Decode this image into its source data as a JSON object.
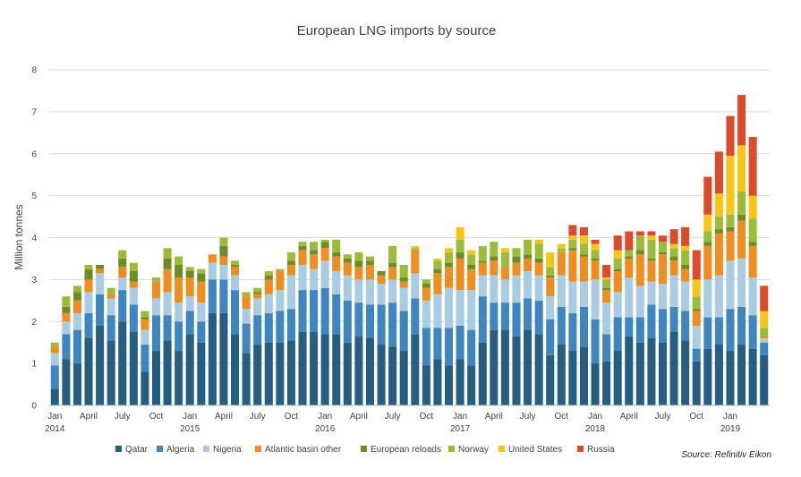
{
  "chart_data": {
    "type": "bar",
    "stacked": true,
    "title": "European LNG imports by source",
    "ylabel": "Million tonnes",
    "xlabel": "",
    "ylim": [
      0,
      8
    ],
    "yticks": [
      0,
      1,
      2,
      3,
      4,
      5,
      6,
      7,
      8
    ],
    "grid": "horizontal",
    "legend_position": "bottom",
    "source": "Source: Refinitiv Eikon",
    "x_ticks": [
      {
        "index": 0,
        "label": "Jan",
        "year": "2014"
      },
      {
        "index": 3,
        "label": "April",
        "year": ""
      },
      {
        "index": 6,
        "label": "July",
        "year": ""
      },
      {
        "index": 9,
        "label": "Oct",
        "year": ""
      },
      {
        "index": 12,
        "label": "Jan",
        "year": "2015"
      },
      {
        "index": 15,
        "label": "April",
        "year": ""
      },
      {
        "index": 18,
        "label": "July",
        "year": ""
      },
      {
        "index": 21,
        "label": "Oct",
        "year": ""
      },
      {
        "index": 24,
        "label": "Jan",
        "year": "2016"
      },
      {
        "index": 27,
        "label": "April",
        "year": ""
      },
      {
        "index": 30,
        "label": "July",
        "year": ""
      },
      {
        "index": 33,
        "label": "Oct",
        "year": ""
      },
      {
        "index": 36,
        "label": "Jan",
        "year": "2017"
      },
      {
        "index": 39,
        "label": "April",
        "year": ""
      },
      {
        "index": 42,
        "label": "July",
        "year": ""
      },
      {
        "index": 45,
        "label": "Oct",
        "year": ""
      },
      {
        "index": 48,
        "label": "Jan",
        "year": "2018"
      },
      {
        "index": 51,
        "label": "April",
        "year": ""
      },
      {
        "index": 54,
        "label": "July",
        "year": ""
      },
      {
        "index": 57,
        "label": "Oct",
        "year": ""
      },
      {
        "index": 60,
        "label": "Jan",
        "year": "2019"
      }
    ],
    "series": [
      {
        "name": "Qatar",
        "color": "#255e80",
        "values": [
          0.4,
          1.1,
          1.0,
          1.6,
          1.9,
          1.55,
          2.0,
          1.75,
          0.8,
          1.3,
          1.55,
          1.3,
          1.7,
          1.5,
          2.2,
          2.2,
          1.7,
          1.25,
          1.45,
          1.5,
          1.5,
          1.55,
          1.75,
          1.75,
          1.7,
          1.7,
          1.5,
          1.65,
          1.6,
          1.45,
          1.4,
          1.3,
          1.7,
          0.95,
          1.1,
          0.95,
          1.1,
          0.95,
          1.5,
          1.8,
          1.8,
          1.65,
          1.8,
          1.7,
          1.2,
          1.45,
          1.3,
          1.4,
          1.0,
          1.05,
          1.3,
          1.65,
          1.5,
          1.6,
          1.5,
          1.75,
          1.55,
          1.05,
          1.35,
          1.45,
          1.3,
          1.45,
          1.35,
          1.2
        ]
      },
      {
        "name": "Algeria",
        "color": "#3f86c1",
        "values": [
          0.55,
          0.6,
          0.8,
          0.6,
          0.75,
          0.6,
          0.75,
          0.65,
          0.65,
          0.85,
          0.6,
          0.7,
          0.55,
          0.5,
          0.8,
          0.8,
          1.05,
          0.7,
          0.7,
          0.7,
          0.75,
          0.75,
          1.0,
          1.0,
          1.1,
          0.95,
          1.0,
          0.8,
          0.8,
          0.95,
          1.05,
          0.95,
          0.85,
          0.9,
          0.75,
          0.9,
          0.8,
          0.85,
          1.1,
          0.65,
          0.65,
          0.8,
          0.75,
          0.8,
          0.85,
          0.9,
          0.9,
          0.95,
          1.05,
          0.65,
          0.8,
          0.45,
          0.6,
          0.8,
          0.8,
          0.6,
          0.7,
          0.3,
          0.75,
          0.65,
          1.0,
          0.9,
          0.8,
          0.3
        ]
      },
      {
        "name": "Nigeria",
        "color": "#a9cce3",
        "values": [
          0.3,
          0.3,
          0.4,
          0.5,
          0.5,
          0.4,
          0.3,
          0.4,
          0.35,
          0.4,
          0.55,
          0.45,
          0.35,
          0.45,
          0.4,
          0.35,
          0.35,
          0.35,
          0.4,
          0.45,
          0.5,
          0.8,
          0.6,
          0.5,
          0.65,
          0.55,
          0.6,
          0.55,
          0.6,
          0.5,
          0.55,
          0.55,
          0.6,
          0.65,
          0.8,
          0.95,
          0.85,
          0.95,
          0.5,
          0.65,
          0.55,
          0.65,
          0.65,
          0.6,
          0.55,
          0.75,
          0.75,
          0.6,
          0.95,
          0.75,
          0.6,
          0.95,
          0.75,
          0.55,
          0.6,
          0.75,
          0.7,
          0.55,
          0.9,
          1.0,
          1.15,
          1.15,
          0.9,
          0.1
        ]
      },
      {
        "name": "Atlantic basin other",
        "color": "#ee8e22",
        "values": [
          0.15,
          0.2,
          0.3,
          0.3,
          0.1,
          0.1,
          0.25,
          0.15,
          0.25,
          0.4,
          0.55,
          0.6,
          0.45,
          0.5,
          0.2,
          0.2,
          0.2,
          0.3,
          0.1,
          0.35,
          0.45,
          0.25,
          0.35,
          0.35,
          0.3,
          0.35,
          0.3,
          0.3,
          0.35,
          0.2,
          0.3,
          0.15,
          0.55,
          0.3,
          0.5,
          0.5,
          0.75,
          0.5,
          0.3,
          0.35,
          0.3,
          0.3,
          0.3,
          0.3,
          0.45,
          0.55,
          0.75,
          0.6,
          0.45,
          0.3,
          0.5,
          0.45,
          0.75,
          0.5,
          0.7,
          0.35,
          0.3,
          0.35,
          0.8,
          1.0,
          0.7,
          0.9,
          0.75,
          0.05
        ]
      },
      {
        "name": "European reloads",
        "color": "#6d8c26",
        "values": [
          0.0,
          0.15,
          0.2,
          0.25,
          0.1,
          0.0,
          0.2,
          0.25,
          0.05,
          0.0,
          0.25,
          0.3,
          0.15,
          0.2,
          0.0,
          0.25,
          0.05,
          0.0,
          0.05,
          0.1,
          0.0,
          0.1,
          0.1,
          0.1,
          0.15,
          0.1,
          0.1,
          0.15,
          0.1,
          0.1,
          0.1,
          0.1,
          0.0,
          0.1,
          0.1,
          0.1,
          0.15,
          0.1,
          0.05,
          0.1,
          0.0,
          0.15,
          0.1,
          0.1,
          0.05,
          0.0,
          0.05,
          0.05,
          0.05,
          0.05,
          0.05,
          0.05,
          0.1,
          0.05,
          0.05,
          0.1,
          0.1,
          0.05,
          0.1,
          0.1,
          0.1,
          0.15,
          0.1,
          0.0
        ]
      },
      {
        "name": "Norway",
        "color": "#9bbb39",
        "values": [
          0.1,
          0.25,
          0.15,
          0.1,
          0.0,
          0.15,
          0.2,
          0.2,
          0.15,
          0.1,
          0.25,
          0.2,
          0.1,
          0.1,
          0.0,
          0.2,
          0.1,
          0.1,
          0.1,
          0.1,
          0.05,
          0.2,
          0.1,
          0.2,
          0.05,
          0.3,
          0.1,
          0.2,
          0.1,
          0.0,
          0.4,
          0.3,
          0.05,
          0.1,
          0.2,
          0.25,
          0.3,
          0.25,
          0.35,
          0.35,
          0.35,
          0.2,
          0.35,
          0.35,
          0.2,
          0.1,
          0.2,
          0.25,
          0.2,
          0.2,
          0.25,
          0.15,
          0.35,
          0.45,
          0.25,
          0.2,
          0.35,
          0.3,
          0.25,
          0.3,
          0.3,
          0.55,
          0.55,
          0.2
        ]
      },
      {
        "name": "United States",
        "color": "#f5c518",
        "values": [
          0,
          0,
          0,
          0,
          0,
          0,
          0,
          0,
          0,
          0,
          0,
          0,
          0,
          0,
          0,
          0,
          0,
          0,
          0,
          0,
          0,
          0,
          0,
          0,
          0,
          0,
          0,
          0,
          0,
          0,
          0,
          0,
          0.05,
          0.0,
          0.05,
          0.1,
          0.3,
          0.1,
          0.0,
          0.0,
          0.1,
          0.0,
          0.0,
          0.1,
          0.35,
          0.1,
          0.1,
          0.2,
          0.15,
          0.05,
          0.2,
          0.0,
          0.0,
          0.1,
          0.0,
          0.1,
          0.1,
          0.4,
          0.4,
          0.55,
          1.4,
          1.1,
          0.55,
          0.4
        ]
      },
      {
        "name": "Russia",
        "color": "#dc4b2c",
        "values": [
          0,
          0,
          0,
          0,
          0,
          0,
          0,
          0,
          0,
          0,
          0,
          0,
          0,
          0,
          0,
          0,
          0,
          0,
          0,
          0,
          0,
          0,
          0,
          0,
          0,
          0,
          0,
          0,
          0,
          0,
          0,
          0,
          0,
          0,
          0,
          0,
          0,
          0,
          0,
          0,
          0,
          0,
          0,
          0,
          0,
          0,
          0.25,
          0.2,
          0.1,
          0.3,
          0.35,
          0.45,
          0.1,
          0.1,
          0.15,
          0.35,
          0.45,
          0.7,
          0.9,
          1.0,
          0.95,
          1.2,
          1.4,
          0.6
        ]
      }
    ]
  }
}
